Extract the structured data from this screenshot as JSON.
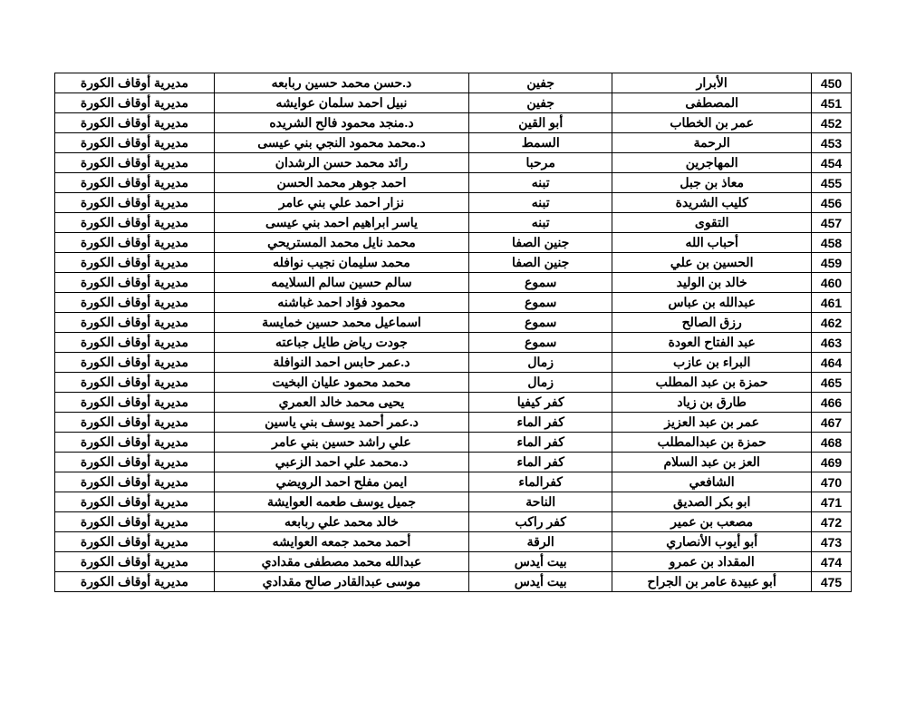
{
  "table": {
    "rows": [
      {
        "num": "450",
        "c1": "الأبرار",
        "c2": "جفين",
        "c3": "د.حسن محمد حسين ربابعه",
        "c4": "مديرية أوقاف الكورة",
        "multiline": false
      },
      {
        "num": "451",
        "c1": "المصطفى",
        "c2": "جفين",
        "c3": "نبيل احمد سلمان عوايشه",
        "c4": "مديرية أوقاف الكورة",
        "multiline": false
      },
      {
        "num": "452",
        "c1": "عمر بن الخطاب",
        "c2": "أبو القين",
        "c3": "د.منجد محمود فالح الشريده",
        "c4": "مديرية أوقاف الكورة",
        "multiline": false
      },
      {
        "num": "453",
        "c1": "الرحمة",
        "c2": "السمط",
        "c3": "د.محمد محمود النجي بني عيسى",
        "c4": "مديرية أوقاف الكورة",
        "multiline": true
      },
      {
        "num": "454",
        "c1": "المهاجرين",
        "c2": "مرحبا",
        "c3": "رائد محمد حسن الرشدان",
        "c4": "مديرية أوقاف الكورة",
        "multiline": false
      },
      {
        "num": "455",
        "c1": "معاذ بن جبل",
        "c2": "تبنه",
        "c3": "احمد جوهر محمد الحسن",
        "c4": "مديرية أوقاف الكورة",
        "multiline": false
      },
      {
        "num": "456",
        "c1": "كليب الشريدة",
        "c2": "تبنه",
        "c3": "نزار احمد علي بني عامر",
        "c4": "مديرية أوقاف الكورة",
        "multiline": false
      },
      {
        "num": "457",
        "c1": "التقوى",
        "c2": "تبنه",
        "c3": "ياسر ابراهيم احمد بني عيسى",
        "c4": "مديرية أوقاف الكورة",
        "multiline": false
      },
      {
        "num": "458",
        "c1": "أحباب الله",
        "c2": "جنين الصفا",
        "c3": "محمد نايل محمد المستريحي",
        "c4": "مديرية أوقاف الكورة",
        "multiline": false
      },
      {
        "num": "459",
        "c1": "الحسين بن علي",
        "c2": "جنين الصفا",
        "c3": "محمد سليمان نجيب نوافله",
        "c4": "مديرية أوقاف الكورة",
        "multiline": false
      },
      {
        "num": "460",
        "c1": "خالد بن الوليد",
        "c2": "سموع",
        "c3": "سالم حسين سالم السلايمه",
        "c4": "مديرية أوقاف الكورة",
        "multiline": false
      },
      {
        "num": "461",
        "c1": "عبدالله بن عباس",
        "c2": "سموع",
        "c3": "محمود فؤاد احمد غباشنه",
        "c4": "مديرية أوقاف الكورة",
        "multiline": false
      },
      {
        "num": "462",
        "c1": "رزق الصالح",
        "c2": "سموع",
        "c3": "اسماعيل محمد حسين خمايسة",
        "c4": "مديرية أوقاف الكورة",
        "multiline": false
      },
      {
        "num": "463",
        "c1": "عبد الفتاح العودة",
        "c2": "سموع",
        "c3": "جودت رياض طايل جباعته",
        "c4": "مديرية أوقاف الكورة",
        "multiline": false
      },
      {
        "num": "464",
        "c1": "البراء بن عازب",
        "c2": "زمال",
        "c3": "د.عمر حابس احمد النوافلة",
        "c4": "مديرية أوقاف الكورة",
        "multiline": false
      },
      {
        "num": "465",
        "c1": "حمزة بن عبد المطلب",
        "c2": "زمال",
        "c3": "محمد محمود عليان البخيت",
        "c4": "مديرية أوقاف الكورة",
        "multiline": false
      },
      {
        "num": "466",
        "c1": "طارق بن زياد",
        "c2": "كفر كيفيا",
        "c3": "يحيى محمد خالد العمري",
        "c4": "مديرية أوقاف الكورة",
        "multiline": false
      },
      {
        "num": "467",
        "c1": "عمر بن عبد العزيز",
        "c2": "كفر الماء",
        "c3": "د.عمر أحمد يوسف بني ياسين",
        "c4": "مديرية أوقاف الكورة",
        "multiline": false
      },
      {
        "num": "468",
        "c1": "حمزة بن عبدالمطلب",
        "c2": "كفر الماء",
        "c3": "علي راشد حسين بني عامر",
        "c4": "مديرية أوقاف الكورة",
        "multiline": false
      },
      {
        "num": "469",
        "c1": "العز بن عبد السلام",
        "c2": "كفر الماء",
        "c3": "د.محمد علي احمد الزعبي",
        "c4": "مديرية أوقاف الكورة",
        "multiline": false
      },
      {
        "num": "470",
        "c1": "الشافعي",
        "c2": "كفرالماء",
        "c3": "ايمن مفلح احمد الرويضي",
        "c4": "مديرية أوقاف الكورة",
        "multiline": false
      },
      {
        "num": "471",
        "c1": "ابو بكر الصديق",
        "c2": "الناحة",
        "c3": "جميل يوسف طعمه العوايشة",
        "c4": "مديرية أوقاف الكورة",
        "multiline": false
      },
      {
        "num": "472",
        "c1": "مصعب بن عمير",
        "c2": "كفر راكب",
        "c3": "خالد محمد علي ربابعه",
        "c4": "مديرية أوقاف الكورة",
        "multiline": false
      },
      {
        "num": "473",
        "c1": "أبو أيوب الأنصاري",
        "c2": "الرقة",
        "c3": "أحمد محمد جمعه العوايشه",
        "c4": "مديرية أوقاف الكورة",
        "multiline": false
      },
      {
        "num": "474",
        "c1": "المقداد بن عمرو",
        "c2": "بيت أيدس",
        "c3": "عبدالله محمد مصطفى مقدادي",
        "c4": "مديرية أوقاف الكورة",
        "multiline": false
      },
      {
        "num": "475",
        "c1": "أبو عبيدة عامر بن الجراح",
        "c2": "بيت أيدس",
        "c3": "موسى عبدالقادر صالح مقدادي",
        "c4": "مديرية أوقاف الكورة",
        "multiline": false
      }
    ],
    "column_widths": [
      "5%",
      "25%",
      "18%",
      "32%",
      "20%"
    ],
    "border_color": "#000000",
    "background_color": "#ffffff",
    "text_color": "#000000",
    "font_size": 14,
    "font_weight": "bold"
  }
}
